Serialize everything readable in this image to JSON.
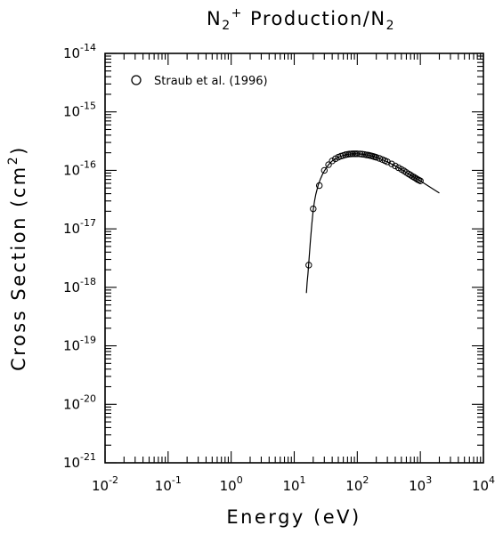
{
  "chart_data": {
    "type": "scatter",
    "title": {
      "base": "N",
      "sub1": "2",
      "sup1": "+",
      "middle": " Production/N",
      "sub2": "2"
    },
    "xlabel": "Energy (eV)",
    "ylabel_prefix": "Cross Section (cm",
    "ylabel_sup": "2",
    "ylabel_suffix": ")",
    "x_scale": "log",
    "y_scale": "log",
    "xlim": [
      0.01,
      10000
    ],
    "ylim": [
      1e-21,
      1e-14
    ],
    "x_tick_labels": [
      {
        "base": "10",
        "exp": "-2"
      },
      {
        "base": "10",
        "exp": "-1"
      },
      {
        "base": "10",
        "exp": "0"
      },
      {
        "base": "10",
        "exp": "1"
      },
      {
        "base": "10",
        "exp": "2"
      },
      {
        "base": "10",
        "exp": "3"
      },
      {
        "base": "10",
        "exp": "4"
      }
    ],
    "y_tick_labels": [
      {
        "base": "10",
        "exp": "-21"
      },
      {
        "base": "10",
        "exp": "-20"
      },
      {
        "base": "10",
        "exp": "-19"
      },
      {
        "base": "10",
        "exp": "-18"
      },
      {
        "base": "10",
        "exp": "-17"
      },
      {
        "base": "10",
        "exp": "-16"
      },
      {
        "base": "10",
        "exp": "-15"
      },
      {
        "base": "10",
        "exp": "-14"
      }
    ],
    "grid": false,
    "legend_position": "top-left",
    "series": [
      {
        "name": "Straub et al. (1996)",
        "kind": "points",
        "marker": "open-circle",
        "x": [
          17,
          20,
          25,
          30,
          35,
          40,
          45,
          50,
          55,
          60,
          65,
          70,
          75,
          80,
          85,
          90,
          95,
          100,
          110,
          120,
          130,
          140,
          150,
          160,
          170,
          180,
          190,
          200,
          225,
          250,
          275,
          300,
          350,
          400,
          450,
          500,
          550,
          600,
          650,
          700,
          750,
          800,
          850,
          900,
          950,
          1000
        ],
        "y": [
          2.4e-18,
          2.2e-17,
          5.5e-17,
          1e-16,
          1.25e-16,
          1.45e-16,
          1.58e-16,
          1.68e-16,
          1.75e-16,
          1.8e-16,
          1.85e-16,
          1.88e-16,
          1.9e-16,
          1.91e-16,
          1.92e-16,
          1.92e-16,
          1.92e-16,
          1.92e-16,
          1.91e-16,
          1.89e-16,
          1.87e-16,
          1.84e-16,
          1.82e-16,
          1.79e-16,
          1.76e-16,
          1.73e-16,
          1.7e-16,
          1.67e-16,
          1.6e-16,
          1.53e-16,
          1.46e-16,
          1.4e-16,
          1.29e-16,
          1.19e-16,
          1.11e-16,
          1.04e-16,
          9.8e-17,
          9.2e-17,
          8.7e-17,
          8.3e-17,
          7.9e-17,
          7.6e-17,
          7.3e-17,
          7e-17,
          6.8e-17,
          6.6e-17
        ]
      },
      {
        "kind": "line",
        "x": [
          15.6,
          16,
          16.5,
          17,
          17.5,
          18,
          19,
          20,
          21,
          22,
          24,
          26,
          28,
          30,
          35,
          40,
          50,
          60,
          70,
          80,
          90,
          100,
          120,
          150,
          200,
          300,
          400,
          500,
          700,
          1000,
          1500,
          2000
        ],
        "y": [
          8e-19,
          1.2e-18,
          1.7e-18,
          2.6e-18,
          4e-18,
          6e-18,
          1.2e-17,
          2.1e-17,
          3e-17,
          3.9e-17,
          5.6e-17,
          7.1e-17,
          8.5e-17,
          9.8e-17,
          1.25e-16,
          1.45e-16,
          1.68e-16,
          1.8e-16,
          1.88e-16,
          1.91e-16,
          1.92e-16,
          1.92e-16,
          1.89e-16,
          1.82e-16,
          1.67e-16,
          1.4e-16,
          1.19e-16,
          1.04e-16,
          8.3e-17,
          6.6e-17,
          5e-17,
          4.1e-17
        ]
      }
    ]
  }
}
